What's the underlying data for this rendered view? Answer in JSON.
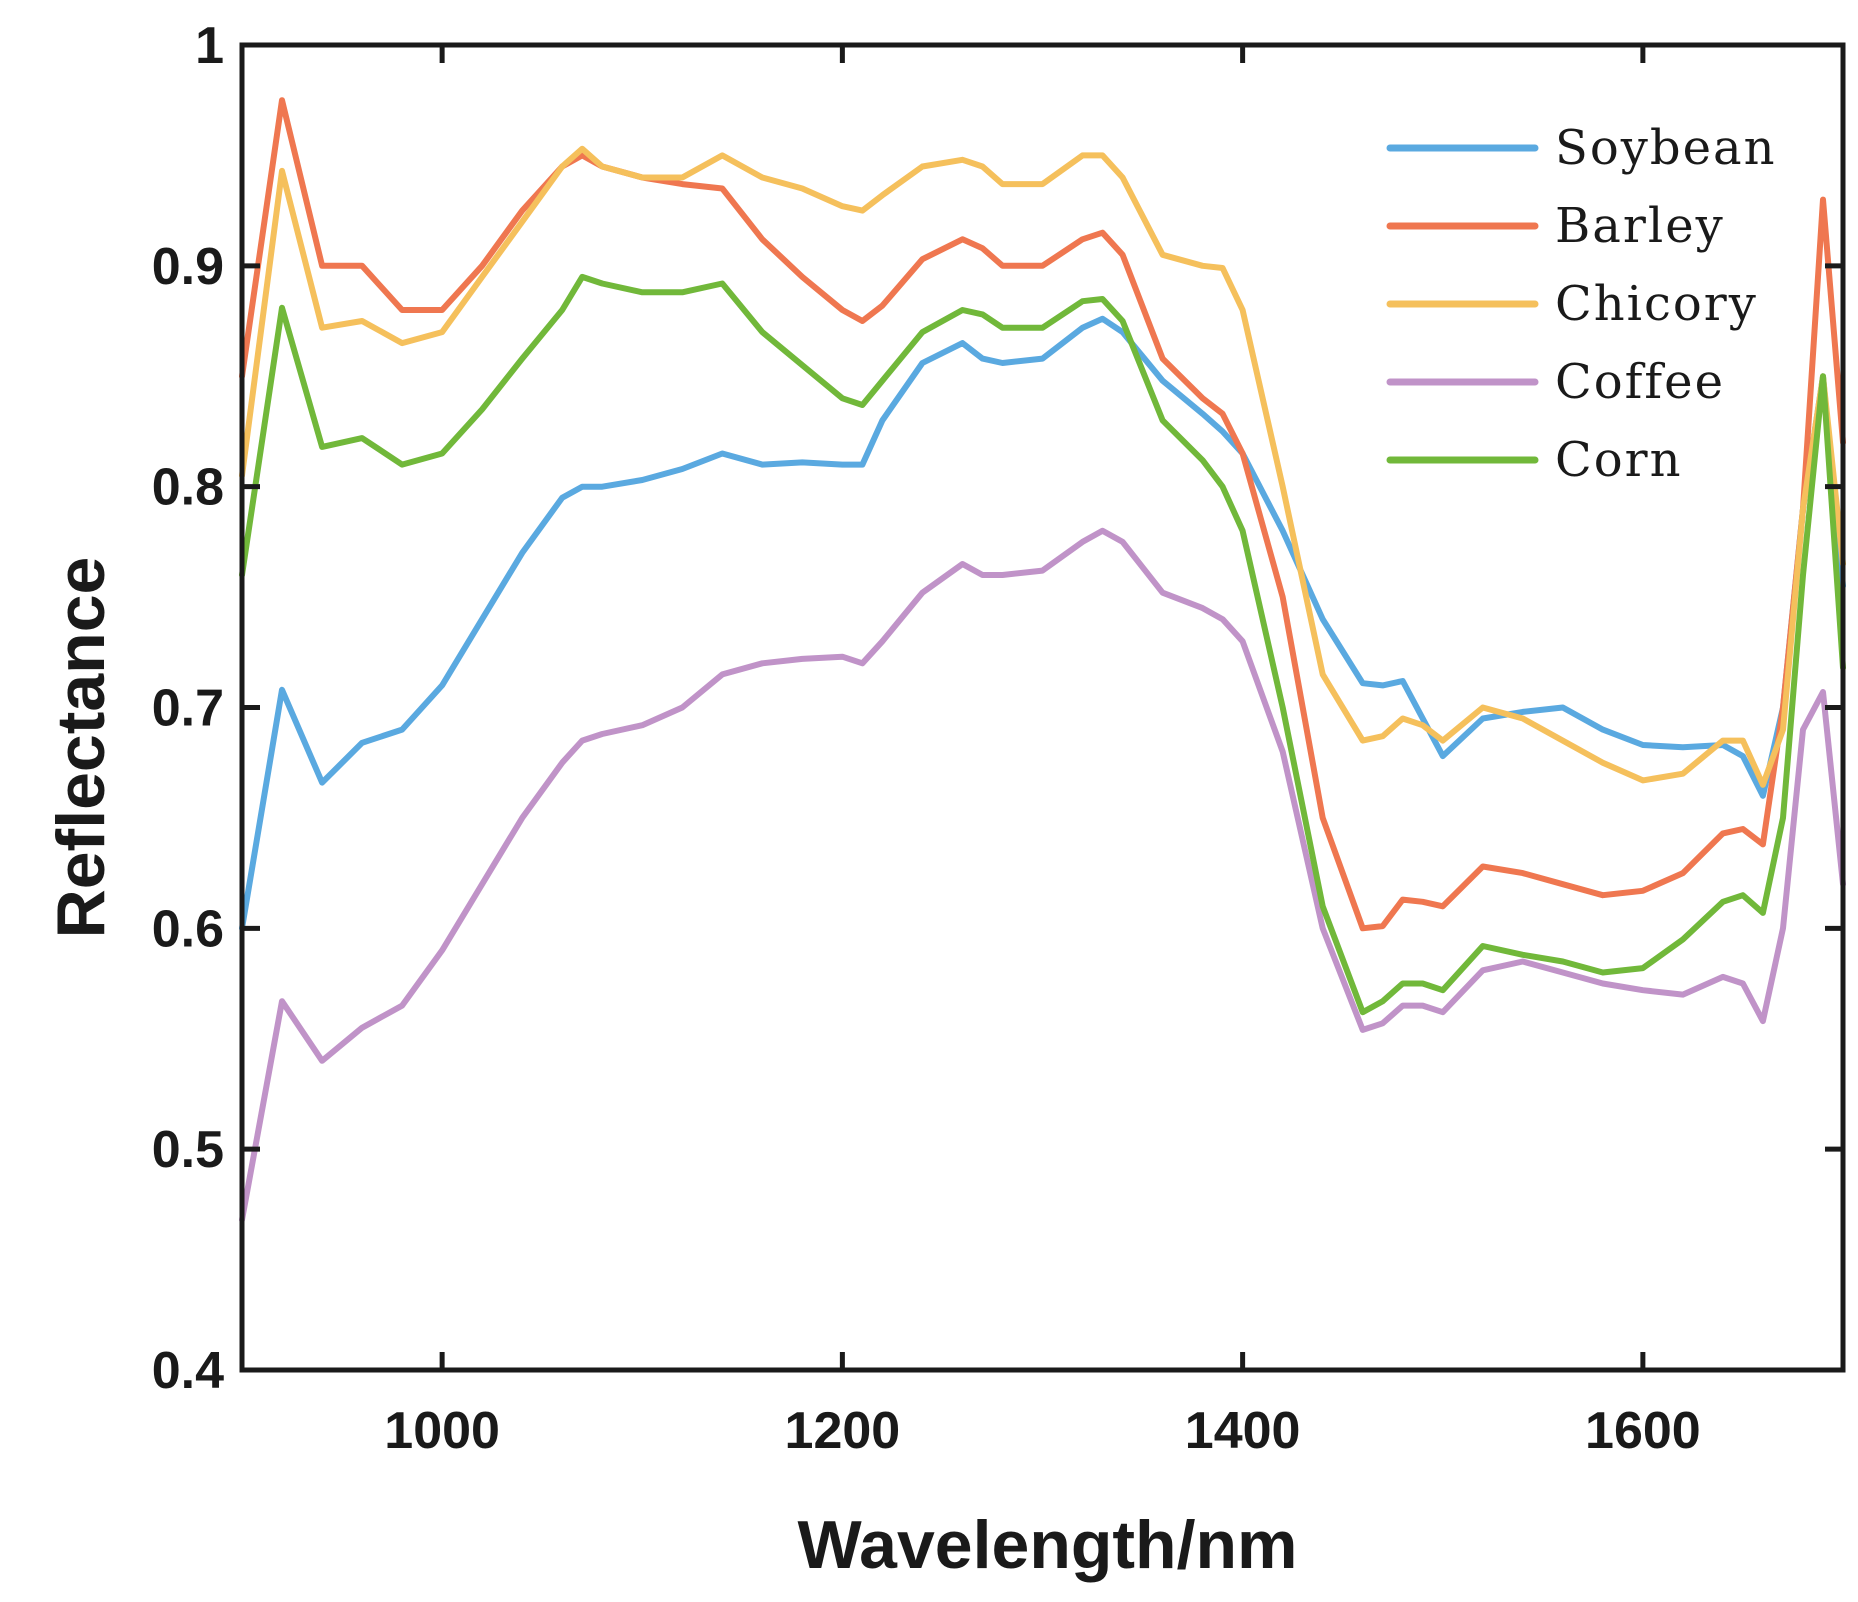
{
  "chart_data": {
    "type": "line",
    "title": "",
    "xlabel": "Wavelength/nm",
    "ylabel": "Reflectance",
    "xlim": [
      900,
      1700
    ],
    "ylim": [
      0.4,
      1
    ],
    "xticks": [
      1000,
      1200,
      1400,
      1600
    ],
    "xtick_labels": [
      "1000",
      "1200",
      "1400",
      "1600"
    ],
    "yticks": [
      0.4,
      0.5,
      0.6,
      0.7,
      0.8,
      0.9,
      1
    ],
    "ytick_labels": [
      "0.4",
      "0.5",
      "0.6",
      "0.7",
      "0.8",
      "0.9",
      "1"
    ],
    "legend_position": "top-right",
    "grid": false,
    "x": [
      900,
      920,
      940,
      960,
      980,
      1000,
      1020,
      1040,
      1060,
      1070,
      1080,
      1100,
      1120,
      1140,
      1160,
      1180,
      1200,
      1210,
      1220,
      1240,
      1260,
      1270,
      1280,
      1300,
      1320,
      1330,
      1340,
      1360,
      1380,
      1390,
      1400,
      1420,
      1440,
      1460,
      1470,
      1480,
      1490,
      1500,
      1520,
      1540,
      1560,
      1580,
      1600,
      1620,
      1640,
      1650,
      1660,
      1670,
      1680,
      1690,
      1700
    ],
    "series": [
      {
        "name": "Soybean",
        "color": "#5aa9e0",
        "values": [
          0.6,
          0.708,
          0.666,
          0.684,
          0.69,
          0.71,
          0.74,
          0.77,
          0.795,
          0.8,
          0.8,
          0.803,
          0.808,
          0.815,
          0.81,
          0.811,
          0.81,
          0.81,
          0.83,
          0.856,
          0.865,
          0.858,
          0.856,
          0.858,
          0.872,
          0.876,
          0.87,
          0.848,
          0.833,
          0.825,
          0.815,
          0.78,
          0.74,
          0.711,
          0.71,
          0.712,
          0.695,
          0.678,
          0.695,
          0.698,
          0.7,
          0.69,
          0.683,
          0.682,
          0.683,
          0.678,
          0.66,
          0.7,
          0.79,
          0.85,
          0.755
        ]
      },
      {
        "name": "Barley",
        "color": "#ef7750",
        "values": [
          0.85,
          0.975,
          0.9,
          0.9,
          0.88,
          0.88,
          0.9,
          0.925,
          0.945,
          0.95,
          0.945,
          0.94,
          0.937,
          0.935,
          0.912,
          0.895,
          0.88,
          0.875,
          0.882,
          0.903,
          0.912,
          0.908,
          0.9,
          0.9,
          0.912,
          0.915,
          0.905,
          0.858,
          0.84,
          0.833,
          0.815,
          0.75,
          0.65,
          0.6,
          0.601,
          0.613,
          0.612,
          0.61,
          0.628,
          0.625,
          0.62,
          0.615,
          0.617,
          0.625,
          0.643,
          0.645,
          0.638,
          0.7,
          0.79,
          0.93,
          0.82
        ]
      },
      {
        "name": "Chicory",
        "color": "#f5c05c",
        "values": [
          0.805,
          0.943,
          0.872,
          0.875,
          0.865,
          0.87,
          0.895,
          0.92,
          0.945,
          0.953,
          0.945,
          0.94,
          0.94,
          0.95,
          0.94,
          0.935,
          0.927,
          0.925,
          0.932,
          0.945,
          0.948,
          0.945,
          0.937,
          0.937,
          0.95,
          0.95,
          0.94,
          0.905,
          0.9,
          0.899,
          0.88,
          0.8,
          0.715,
          0.685,
          0.687,
          0.695,
          0.692,
          0.685,
          0.7,
          0.695,
          0.685,
          0.675,
          0.667,
          0.67,
          0.685,
          0.685,
          0.665,
          0.69,
          0.79,
          0.85,
          0.765
        ]
      },
      {
        "name": "Coffee",
        "color": "#c093c8",
        "values": [
          0.468,
          0.567,
          0.54,
          0.555,
          0.565,
          0.59,
          0.62,
          0.65,
          0.675,
          0.685,
          0.688,
          0.692,
          0.7,
          0.715,
          0.72,
          0.722,
          0.723,
          0.72,
          0.73,
          0.752,
          0.765,
          0.76,
          0.76,
          0.762,
          0.775,
          0.78,
          0.775,
          0.752,
          0.745,
          0.74,
          0.73,
          0.68,
          0.6,
          0.554,
          0.557,
          0.565,
          0.565,
          0.562,
          0.581,
          0.585,
          0.58,
          0.575,
          0.572,
          0.57,
          0.578,
          0.575,
          0.558,
          0.6,
          0.69,
          0.707,
          0.62
        ]
      },
      {
        "name": "Corn",
        "color": "#71b83a",
        "values": [
          0.76,
          0.881,
          0.818,
          0.822,
          0.81,
          0.815,
          0.835,
          0.858,
          0.88,
          0.895,
          0.892,
          0.888,
          0.888,
          0.892,
          0.87,
          0.855,
          0.84,
          0.837,
          0.848,
          0.87,
          0.88,
          0.878,
          0.872,
          0.872,
          0.884,
          0.885,
          0.875,
          0.83,
          0.812,
          0.8,
          0.78,
          0.7,
          0.61,
          0.562,
          0.567,
          0.575,
          0.575,
          0.572,
          0.592,
          0.588,
          0.585,
          0.58,
          0.582,
          0.595,
          0.612,
          0.615,
          0.607,
          0.65,
          0.76,
          0.85,
          0.718
        ]
      }
    ]
  }
}
